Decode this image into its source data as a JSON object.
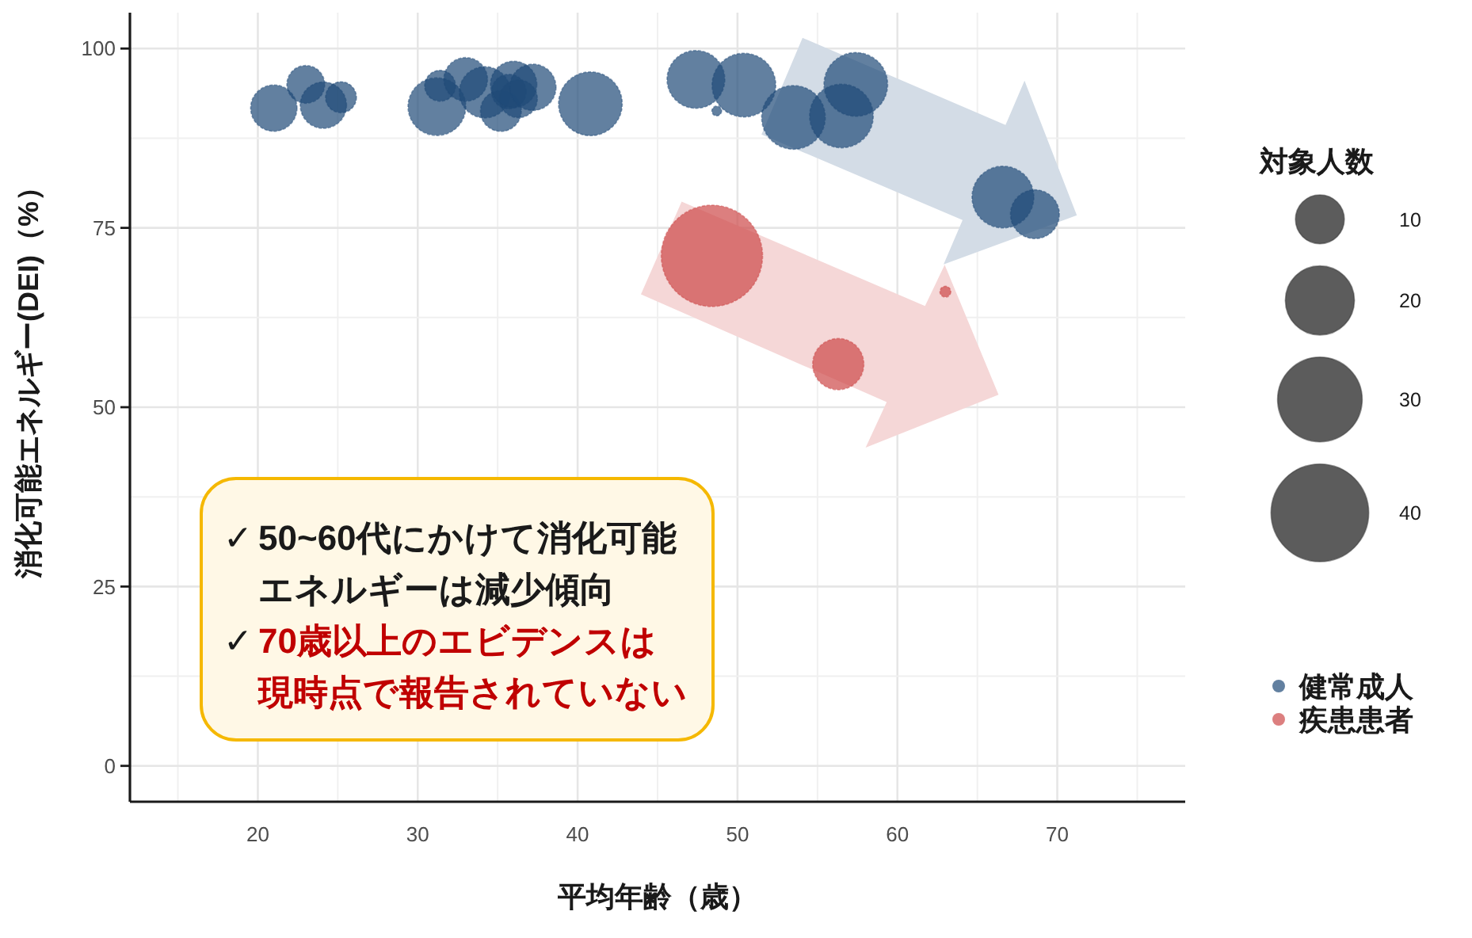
{
  "chart_data": {
    "type": "bubble",
    "xlabel": "平均年齢（歳）",
    "ylabel": "消化可能エネルギー(DEI)（%）",
    "legend_title": "対象人数",
    "xlim": [
      12,
      78
    ],
    "xticks": [
      20,
      30,
      40,
      50,
      60,
      70
    ],
    "ylim": [
      -5,
      105
    ],
    "yticks": [
      0,
      25,
      50,
      75,
      100
    ],
    "grid": true,
    "legend": "right",
    "size_legend": [
      10,
      20,
      30,
      40
    ],
    "series": [
      {
        "name": "健常成人",
        "color": "#1f4a78",
        "x": [
          21.0,
          23.0,
          24.1,
          25.2,
          31.2,
          31.4,
          33.0,
          34.2,
          35.2,
          35.7,
          36.3,
          36.0,
          37.2,
          40.8,
          47.4,
          48.7,
          50.4,
          53.5,
          56.5,
          57.4,
          66.6,
          68.6
        ],
        "values": [
          91.7,
          95.0,
          92.1,
          93.2,
          91.9,
          94.8,
          95.7,
          93.9,
          91.3,
          94.0,
          93.0,
          95.0,
          94.6,
          92.3,
          95.7,
          91.3,
          94.9,
          90.4,
          90.6,
          95.0,
          79.3,
          76.9
        ],
        "sizes": [
          9,
          6,
          9,
          4,
          14,
          4,
          8,
          11,
          7,
          5,
          6,
          9,
          9,
          17,
          14,
          0.4,
          17,
          17,
          17,
          17,
          16,
          10
        ]
      },
      {
        "name": "疾患患者",
        "color": "#cd4848",
        "x": [
          48.4,
          56.3,
          63.0
        ],
        "values": [
          71.1,
          56.0,
          66.1
        ],
        "sizes": [
          43,
          11,
          0.5
        ]
      }
    ],
    "annotations": [
      "✓ 50~60代にかけて消化可能",
      "エネルギーは減少傾向",
      "✓ 70歳以上のエビデンスは",
      "現時点で報告されていない"
    ]
  }
}
